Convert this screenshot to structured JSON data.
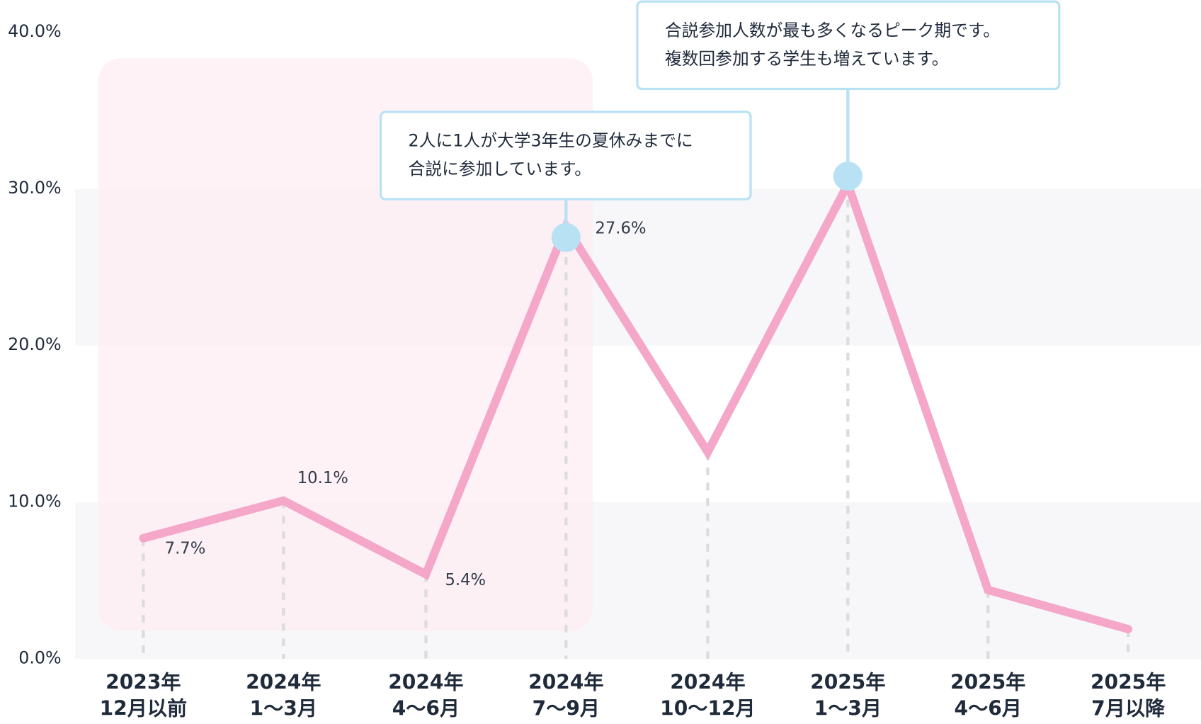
{
  "chart_data": {
    "type": "line",
    "categories": [
      [
        "2023年",
        "12月以前"
      ],
      [
        "2024年",
        "1〜3月"
      ],
      [
        "2024年",
        "4〜6月"
      ],
      [
        "2024年",
        "7〜9月"
      ],
      [
        "2024年",
        "10〜12月"
      ],
      [
        "2025年",
        "1〜3月"
      ],
      [
        "2025年",
        "4〜6月"
      ],
      [
        "2025年",
        "7月以降"
      ]
    ],
    "series": [
      {
        "color": "#f4a7c8",
        "values": [
          7.7,
          10.1,
          5.4,
          27.6,
          13.2,
          30.3,
          4.4,
          1.9
        ],
        "value_labels": [
          "7.7%",
          "10.1%",
          "5.4%",
          "27.6%",
          null,
          null,
          null,
          null
        ]
      }
    ],
    "ylim": [
      0,
      40
    ],
    "yticks": [
      {
        "value": 0,
        "label": "0.0%"
      },
      {
        "value": 10,
        "label": "10.0%"
      },
      {
        "value": 20,
        "label": "20.0%"
      },
      {
        "value": 30,
        "label": "30.0%"
      },
      {
        "value": 40,
        "label": "40.0%"
      }
    ],
    "annotations": [
      [
        "2人に1人が大学3年生の夏休みまでに",
        "合説に参加しています。"
      ],
      [
        "合説参加人数が最も多くなるピーク期です。",
        "複数回参加する学生も増えています。"
      ]
    ]
  }
}
